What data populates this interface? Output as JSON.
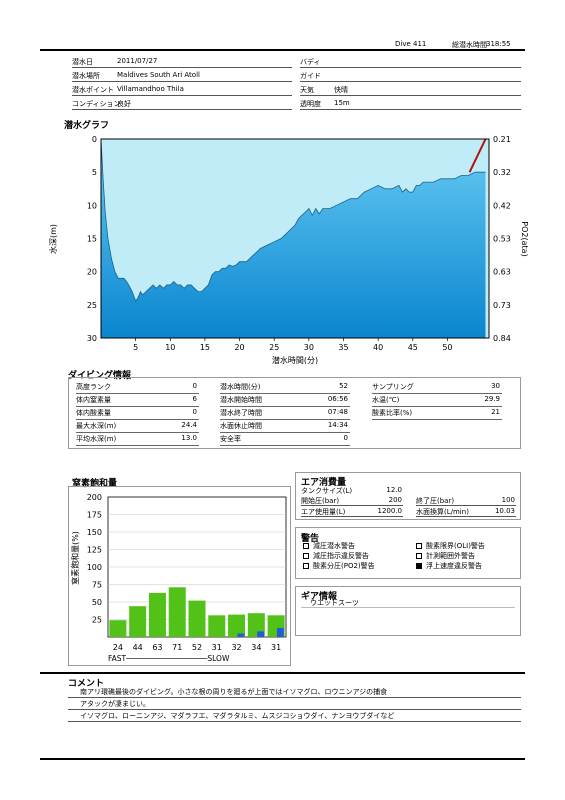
{
  "header": {
    "dive_no": "Dive 411",
    "total_label": "総潜水時間",
    "total_value": "318:55"
  },
  "info": {
    "date_label": "潜水日",
    "date": "2011/07/27",
    "buddy_label": "バディ",
    "buddy": "",
    "site_label": "潜水場所",
    "site": "Maldives South Ari Atoll",
    "guide_label": "ガイド",
    "guide": "",
    "point_label": "潜水ポイント",
    "point": "Villamandhoo Thila",
    "weather_label": "天気",
    "weather": "快晴",
    "condition_label": "コンディション",
    "condition": "良好",
    "visibility_label": "透明度",
    "visibility": "15m"
  },
  "graph": {
    "title": "潜水グラフ",
    "xlabel": "潜水時間(分)",
    "ylabel_left": "水深(m)",
    "ylabel_right": "PO2(ata)"
  },
  "dive_info": {
    "title": "ダイビング情報",
    "col1": [
      {
        "label": "高度ランク",
        "value": "0"
      },
      {
        "label": "体内窒素量",
        "value": "6"
      },
      {
        "label": "体内酸素量",
        "value": "0"
      },
      {
        "label": "最大水深(m)",
        "value": "24.4"
      },
      {
        "label": "平均水深(m)",
        "value": "13.0"
      }
    ],
    "col2": [
      {
        "label": "潜水時間(分)",
        "value": "52"
      },
      {
        "label": "潜水開始時間",
        "value": "06:56"
      },
      {
        "label": "潜水終了時間",
        "value": "07:48"
      },
      {
        "label": "水面休止時間",
        "value": "14:34"
      },
      {
        "label": "安全率",
        "value": "0"
      }
    ],
    "col3": [
      {
        "label": "サンプリング",
        "value": "30"
      },
      {
        "label": "水温(℃)",
        "value": "29.9"
      },
      {
        "label": "酸素比率(%)",
        "value": "21"
      }
    ]
  },
  "n2": {
    "title": "窒素飽和量",
    "ylabel": "窒素飽和量(%)",
    "fast_slow": "FAST──────────────────SLOW"
  },
  "air": {
    "title": "エア消費量",
    "tank_label": "タンクサイズ(L)",
    "tank": "12.0",
    "start_label": "開始圧(bar)",
    "start": "200",
    "end_label": "終了圧(bar)",
    "end": "100",
    "use_label": "エア使用量(L)",
    "use": "1200.0",
    "rate_label": "水面換算(L/min)",
    "rate": "10.03"
  },
  "warning": {
    "title": "警告",
    "items": [
      {
        "label": "減圧潜水警告",
        "on": false
      },
      {
        "label": "酸素限界(OLI)警告",
        "on": false
      },
      {
        "label": "減圧指示違反警告",
        "on": false
      },
      {
        "label": "計測範囲外警告",
        "on": false
      },
      {
        "label": "酸素分圧(PO2)警告",
        "on": false
      },
      {
        "label": "浮上速度違反警告",
        "on": true
      }
    ]
  },
  "gear": {
    "title": "ギア情報",
    "text": "ウエットスーツ"
  },
  "comment": {
    "title": "コメント",
    "lines": [
      "南アリ環礁最後のダイビング。小さな根の周りを廻るが上面ではイソマグロ、ロウニンアジの捕食",
      "アタックが凄まじい。",
      "イソマグロ、ローニンアジ、マダラフエ、マダラタルミ、ムスジコショウダイ、ナンヨウブダイなど"
    ]
  },
  "chart_data": [
    {
      "type": "area",
      "xlabel": "潜水時間(分)",
      "ylabel": "水深(m)",
      "y2label": "PO2(ata)",
      "xlim": [
        0,
        56
      ],
      "ylim": [
        30,
        0
      ],
      "y2lim": [
        0.84,
        0.21
      ],
      "xticks": [
        5,
        10,
        15,
        20,
        25,
        30,
        35,
        40,
        45,
        50
      ],
      "yticks": [
        0,
        5,
        10,
        15,
        20,
        25,
        30
      ],
      "y2ticks": [
        "0.21",
        "0.32",
        "0.42",
        "0.53",
        "0.63",
        "0.73",
        "0.84"
      ],
      "depth_profile": {
        "x": [
          0,
          0.3,
          0.6,
          1,
          1.5,
          2,
          2.5,
          3,
          3.3,
          3.7,
          4,
          4.5,
          5,
          5.3,
          5.7,
          6,
          6.5,
          7,
          7.5,
          8,
          8.5,
          9,
          9.5,
          10,
          10.5,
          11,
          11.5,
          12,
          12.5,
          13,
          13.5,
          14,
          14.5,
          15,
          15.5,
          16,
          16.5,
          17,
          17.5,
          18,
          18.5,
          19,
          19.5,
          20,
          21,
          22,
          23,
          24,
          25,
          26,
          27,
          28,
          28.5,
          29,
          29.5,
          30,
          30.5,
          31,
          31.5,
          32,
          33,
          34,
          35,
          36,
          37,
          38,
          39,
          40,
          41,
          42,
          43,
          43.5,
          44,
          44.5,
          45,
          45.5,
          46,
          46.5,
          47,
          48,
          49,
          50,
          51,
          52,
          53,
          54,
          55,
          55.5
        ],
        "y": [
          0,
          6,
          11,
          15,
          18,
          20,
          21,
          21,
          21,
          21.5,
          22,
          23,
          24.4,
          24,
          23,
          23.5,
          23,
          22.5,
          22,
          22.5,
          22,
          22.5,
          22,
          22,
          21.5,
          22,
          22,
          22.5,
          22,
          22,
          22.5,
          23,
          23,
          22.5,
          22,
          20.5,
          20,
          20,
          19.5,
          19.5,
          19,
          19.2,
          19,
          18.5,
          18.5,
          17.5,
          16.5,
          16,
          15.5,
          15,
          14,
          13,
          12,
          11.5,
          11,
          10.5,
          11.5,
          10.5,
          11.3,
          10.5,
          10.5,
          10,
          9.5,
          9,
          9,
          8,
          7.5,
          7,
          7.5,
          7.5,
          7,
          8,
          7.5,
          8,
          8,
          7,
          7,
          6.5,
          6.5,
          6.5,
          6,
          6,
          6,
          5.5,
          5.5,
          5,
          5,
          5
        ]
      },
      "ascent_alarm": {
        "x": [
          53.2,
          55.5
        ],
        "y": [
          5,
          0
        ],
        "color": "#b01010"
      }
    },
    {
      "type": "bar",
      "ylabel": "窒素飽和量(%)",
      "ylim": [
        0,
        200
      ],
      "yticks": [
        25,
        50,
        75,
        100,
        125,
        150,
        175,
        200
      ],
      "categories": [
        "24",
        "44",
        "63",
        "71",
        "52",
        "31",
        "32",
        "34",
        "31"
      ],
      "series": [
        {
          "values": [
            24,
            44,
            63,
            71,
            52,
            31,
            32,
            34,
            31
          ],
          "color": "#52c218"
        },
        {
          "values": [
            0,
            0,
            0,
            0,
            0,
            0,
            5,
            8,
            13
          ],
          "color": "#1f5cd6"
        }
      ]
    }
  ],
  "colors": {
    "chart_bg": "#c0ecf8",
    "depth_fill_top": "#66cbf3",
    "depth_fill_bottom": "#0a85cf",
    "n2_bar": "#52c218",
    "n2_bar_blue": "#1f5cd6",
    "alarm": "#b01010"
  }
}
